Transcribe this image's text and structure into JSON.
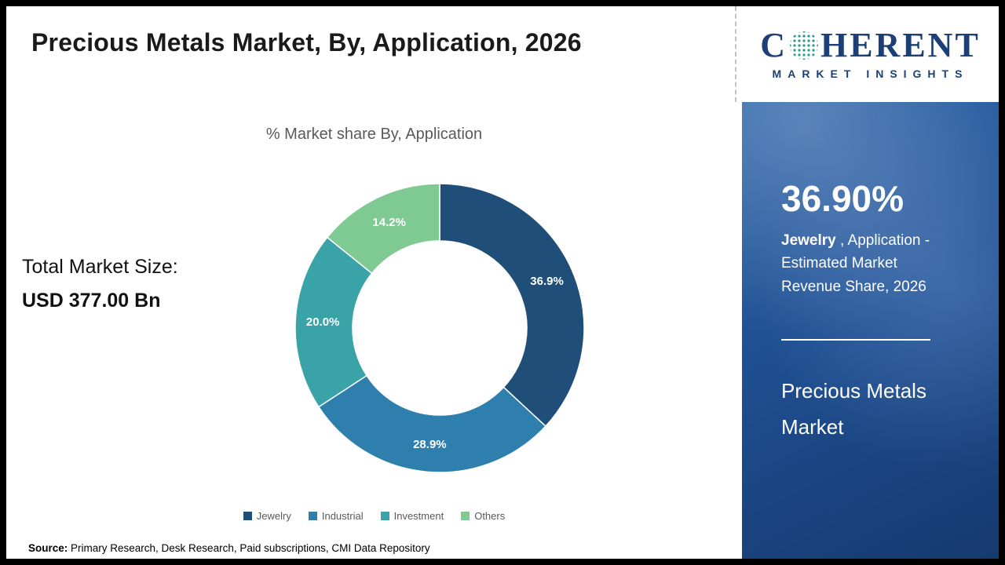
{
  "page": {
    "title": "Precious Metals Market, By, Application, 2026"
  },
  "logo": {
    "name_start": "C",
    "name_end": "HERENT",
    "tagline": "MARKET INSIGHTS"
  },
  "stats": {
    "market_size_label": "Total Market Size:",
    "market_size_value": "USD 377.00 Bn"
  },
  "chart_data": {
    "type": "pie",
    "subtype": "donut",
    "title": "% Market share By, Application",
    "categories": [
      "Jewelry",
      "Industrial",
      "Investment",
      "Others"
    ],
    "values": [
      36.9,
      28.9,
      20.0,
      14.2
    ],
    "labels": [
      "36.9%",
      "28.9%",
      "20.0%",
      "14.2%"
    ],
    "colors": [
      "#1f4e79",
      "#2e7fad",
      "#3aa3a8",
      "#7fc992"
    ],
    "legend_position": "bottom"
  },
  "sidebar": {
    "highlight_value": "36.90%",
    "highlight_segment": "Jewelry",
    "highlight_desc": " , Application - Estimated Market Revenue Share, 2026",
    "panel_title": "Precious Metals Market"
  },
  "footer": {
    "source_label": "Source:",
    "source_text": " Primary Research, Desk Research, Paid subscriptions, CMI Data Repository"
  }
}
